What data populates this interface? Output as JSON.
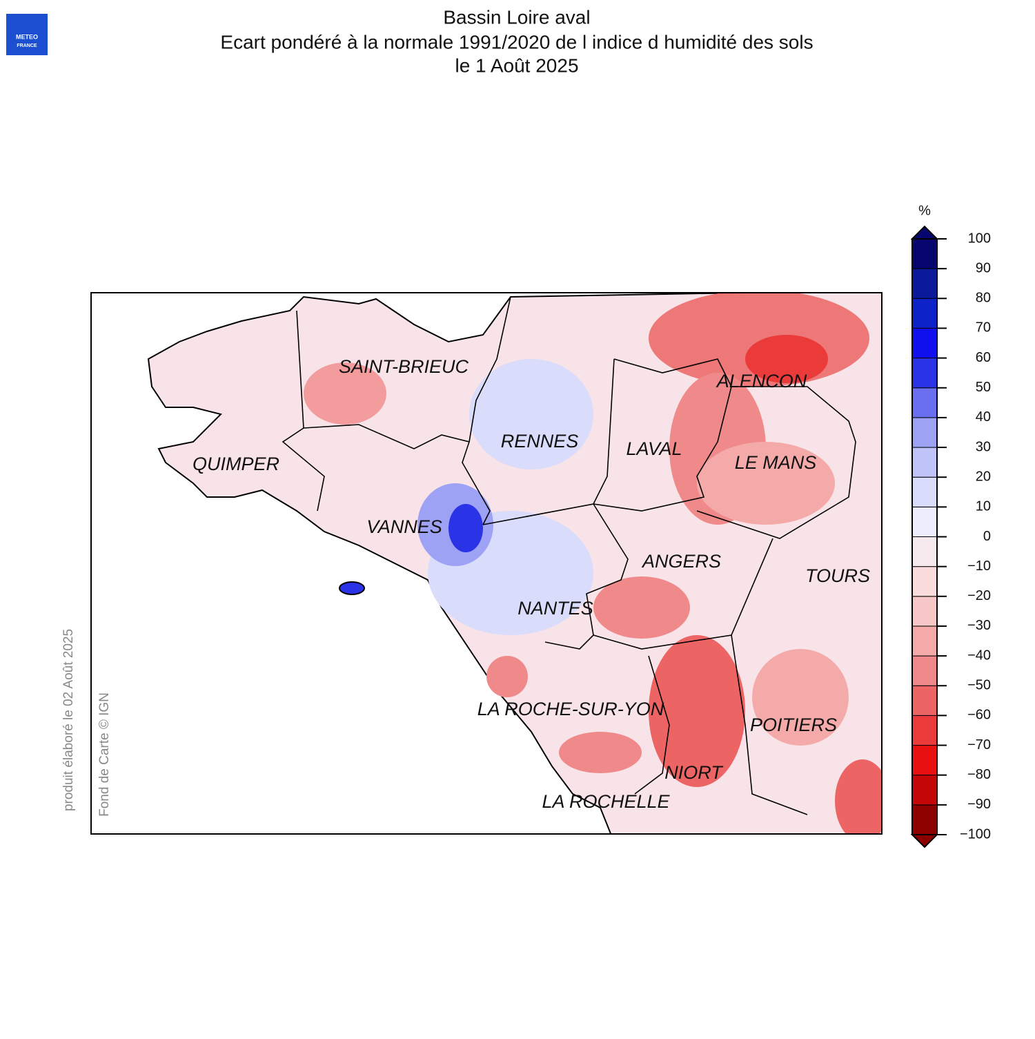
{
  "logo": {
    "line1": "METEO",
    "line2": "FRANCE"
  },
  "header": {
    "title": "Bassin Loire aval",
    "subtitle": "Ecart pondéré à la normale 1991/2020 de l indice d humidité des sols",
    "date": "le 1 Août 2025"
  },
  "cities": [
    "SAINT-BRIEUC",
    "RENNES",
    "LAVAL",
    "ALENCON",
    "LE MANS",
    "QUIMPER",
    "VANNES",
    "ANGERS",
    "TOURS",
    "NANTES",
    "LA ROCHE-SUR-YON",
    "POITIERS",
    "NIORT",
    "LA ROCHELLE"
  ],
  "credits": {
    "produced": "produit élaboré le 02 Août 2025",
    "basemap": "Fond de Carte © IGN"
  },
  "colorbar": {
    "unit": "%",
    "ticks": [
      {
        "value": -100,
        "label": "−100"
      },
      {
        "value": -90,
        "label": "−90"
      },
      {
        "value": -80,
        "label": "−80"
      },
      {
        "value": -70,
        "label": "−70"
      },
      {
        "value": -60,
        "label": "−60"
      },
      {
        "value": -50,
        "label": "−50"
      },
      {
        "value": -40,
        "label": "−40"
      },
      {
        "value": -30,
        "label": "−30"
      },
      {
        "value": -20,
        "label": "−20"
      },
      {
        "value": -10,
        "label": "−10"
      },
      0,
      10,
      20,
      30,
      40,
      50,
      60,
      70,
      80,
      90,
      100
    ],
    "colors": [
      "#8c0000",
      "#c40606",
      "#e81010",
      "#ea3a3a",
      "#ec6464",
      "#f08a8a",
      "#f5aaaa",
      "#f8c8c8",
      "#fadcdc",
      "#f7eaee",
      "#eceefd",
      "#dadcfb",
      "#c0c3f8",
      "#9ea2f5",
      "#6a6ef0",
      "#2a33e6",
      "#1010ee",
      "#0d22c8",
      "#0b1a9a",
      "#06066e"
    ]
  }
}
